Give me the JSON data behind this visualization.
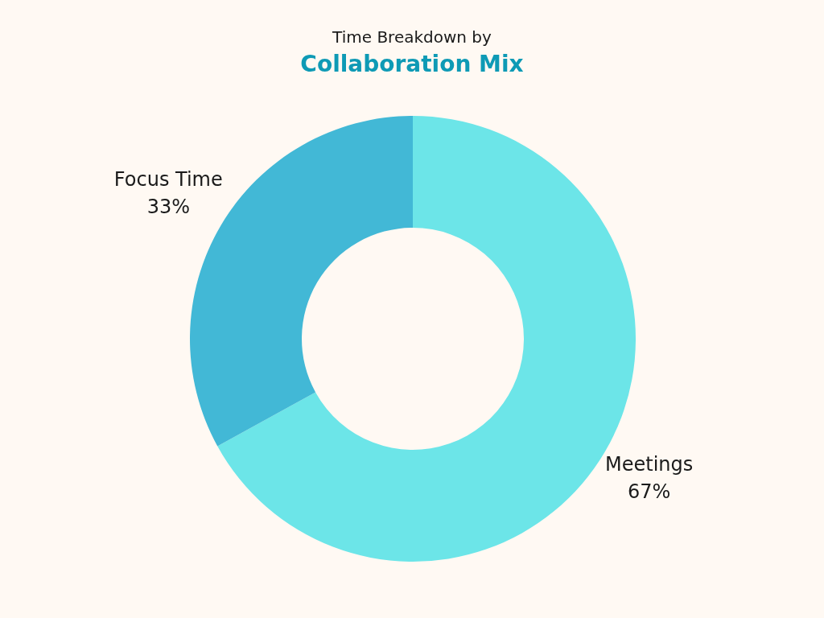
{
  "chart_data": {
    "type": "donut",
    "subtitle": "Time Breakdown by",
    "title": "Collaboration Mix",
    "categories": [
      "Meetings",
      "Focus Time"
    ],
    "values": [
      67,
      33
    ],
    "colors": [
      "#6ce5e8",
      "#42b8d6"
    ],
    "value_labels": [
      "67%",
      "33%"
    ],
    "legend": false
  }
}
